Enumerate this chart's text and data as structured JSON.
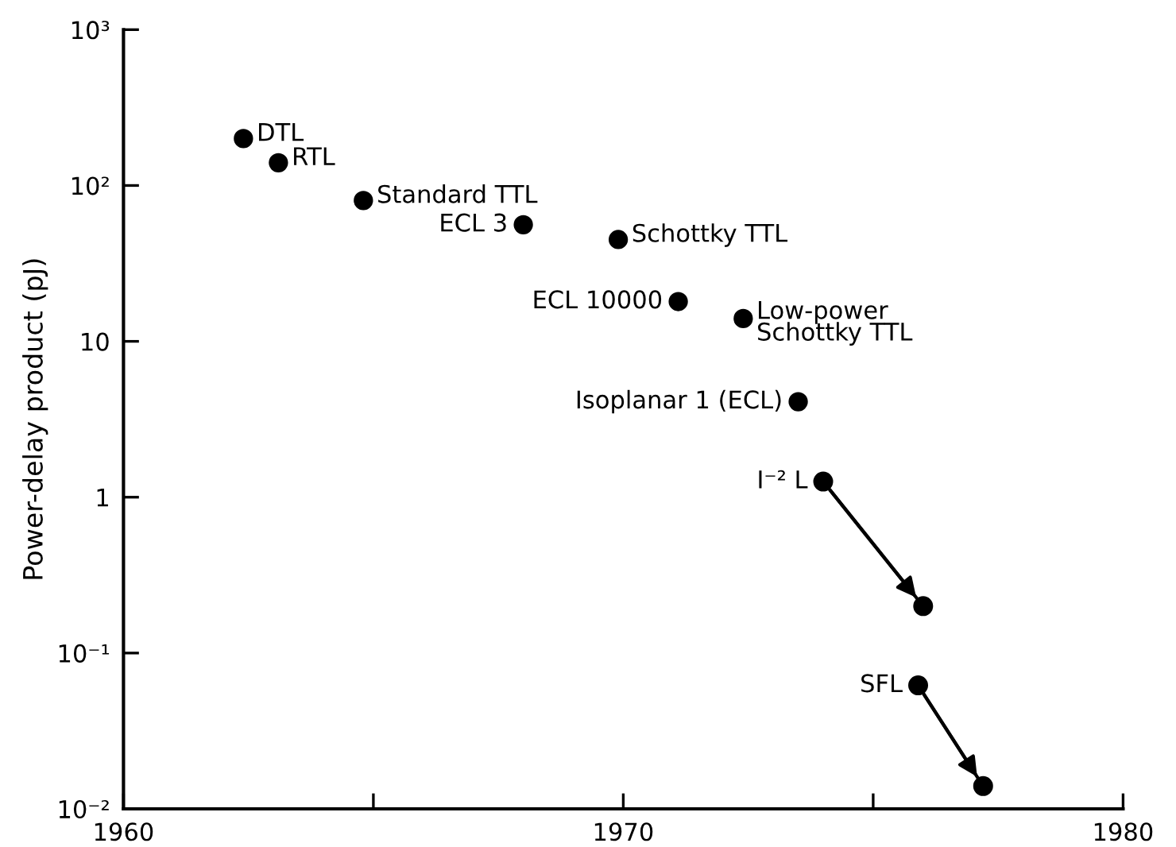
{
  "chart_data": {
    "type": "scatter",
    "ylabel": "Power-delay product (pJ)",
    "log": "y",
    "xlim": [
      1960,
      1980
    ],
    "xticks": [
      1960,
      {
        "value": 1965,
        "label": null
      },
      1970,
      {
        "value": 1975,
        "label": null
      },
      1980
    ],
    "ylim": [
      0.01,
      1000
    ],
    "yticks": [
      {
        "value": 0.01,
        "label": "10⁻²"
      },
      {
        "value": 0.1,
        "label": "10⁻¹"
      },
      1,
      10,
      {
        "value": 100,
        "label": "10²"
      },
      {
        "value": 1000,
        "label": "10³"
      }
    ],
    "grid": false,
    "marker": "circle",
    "series": [
      {
        "color": "#000000",
        "x": [
          1962.4,
          1963.1,
          1964.8,
          1968.0,
          1969.9,
          1971.1,
          1972.4,
          1973.5
        ],
        "values": [
          200,
          140,
          80,
          56,
          45,
          18,
          14,
          4.1
        ]
      },
      {
        "type": "line",
        "color": "#000000",
        "line_style": "solid",
        "x": [
          1974.0,
          1976.0
        ],
        "values": [
          1.26,
          0.2
        ]
      },
      {
        "type": "line",
        "color": "#000000",
        "line_style": "solid",
        "x": [
          1975.9,
          1977.2
        ],
        "values": [
          0.062,
          0.014
        ]
      }
    ],
    "annotations": [
      {
        "text": "DTL",
        "x": 1962.4,
        "y": 200
      },
      {
        "text": "RTL",
        "x": 1963.1,
        "y": 140
      },
      {
        "text": "Standard TTL",
        "x": 1964.8,
        "y": 80
      },
      {
        "text": "ECL 3",
        "x": 1968.0,
        "y": 56
      },
      {
        "text": "Schottky TTL",
        "x": 1969.9,
        "y": 45
      },
      {
        "text": "ECL 10000",
        "x": 1971.1,
        "y": 18
      },
      {
        "text": "Low-power\nSchottky TTL",
        "x": 1972.4,
        "y": 14
      },
      {
        "text": "Isoplanar 1 (ECL)",
        "x": 1973.5,
        "y": 4.1
      },
      {
        "text": "I⁻² L",
        "x": 1974.0,
        "y": 1.26
      },
      {
        "text": "SFL",
        "x": 1975.9,
        "y": 0.062
      }
    ]
  }
}
